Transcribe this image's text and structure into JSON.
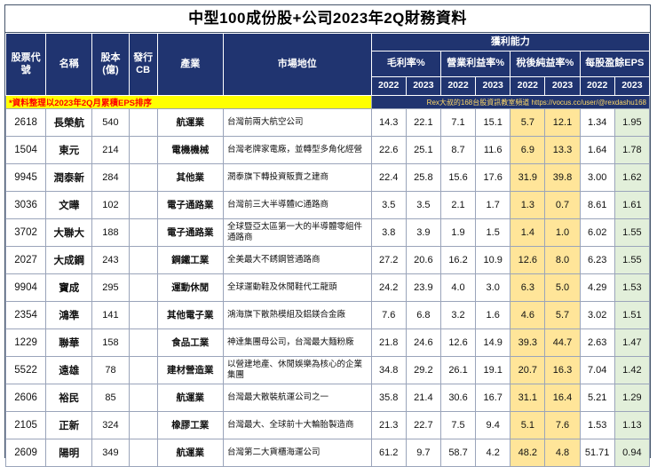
{
  "title": "中型100成份股+公司2023年2Q財務資料",
  "note": {
    "left": "*資料整理以2023年2Q月累積EPS排序",
    "right": "Rex大叔的168台股資訊教室頻道 https://vocus.cc/user/@rexdashu168"
  },
  "header": {
    "code": "股票代號",
    "name": "名稱",
    "capital": "股本(億)",
    "cb": "發行CB",
    "industry": "產業",
    "market": "市場地位",
    "profitability": "獲利能力",
    "gross_margin": "毛利率%",
    "operating_margin": "營業利益率%",
    "net_margin": "稅後純益率%",
    "eps": "每股盈餘EPS",
    "year_2022": "2022",
    "year_2023": "2023"
  },
  "colors": {
    "header_bg": "#203470",
    "note_bg": "#FFFF00",
    "note_text": "#FF0000",
    "net_margin_highlight": "#FFE599",
    "eps_highlight": "#E2EFDA"
  },
  "rows": [
    [
      "2618",
      "長榮航",
      "540",
      "",
      "航運業",
      "台灣前兩大航空公司",
      "14.3",
      "22.1",
      "7.1",
      "15.1",
      "5.7",
      "12.1",
      "1.34",
      "1.95"
    ],
    [
      "1504",
      "東元",
      "214",
      "",
      "電機機械",
      "台灣老牌家電廠，並轉型多角化經營",
      "22.6",
      "25.1",
      "8.7",
      "11.6",
      "6.9",
      "13.3",
      "1.64",
      "1.78"
    ],
    [
      "9945",
      "潤泰新",
      "284",
      "",
      "其他業",
      "潤泰旗下轉投資販賣之建商",
      "22.4",
      "25.8",
      "15.6",
      "17.6",
      "31.9",
      "39.8",
      "3.00",
      "1.62"
    ],
    [
      "3036",
      "文曄",
      "102",
      "",
      "電子通路業",
      "台灣前三大半導體IC通路商",
      "3.5",
      "3.5",
      "2.1",
      "1.7",
      "1.3",
      "0.7",
      "8.61",
      "1.61"
    ],
    [
      "3702",
      "大聯大",
      "188",
      "",
      "電子通路業",
      "全球暨亞太區第一大的半導體零組件通路商",
      "3.8",
      "3.9",
      "1.9",
      "1.5",
      "1.4",
      "1.0",
      "6.02",
      "1.55"
    ],
    [
      "2027",
      "大成鋼",
      "243",
      "",
      "鋼鐵工業",
      "全美最大不銹鋼管通路商",
      "27.2",
      "20.6",
      "16.2",
      "10.9",
      "12.6",
      "8.0",
      "6.23",
      "1.55"
    ],
    [
      "9904",
      "寶成",
      "295",
      "",
      "運動休閒",
      "全球運動鞋及休閒鞋代工龍頭",
      "24.2",
      "23.9",
      "4.0",
      "3.0",
      "6.3",
      "5.0",
      "4.29",
      "1.53"
    ],
    [
      "2354",
      "鴻準",
      "141",
      "",
      "其他電子業",
      "鴻海旗下散熱模組及鋁鎂合金廠",
      "7.6",
      "6.8",
      "3.2",
      "1.6",
      "4.6",
      "5.7",
      "3.02",
      "1.51"
    ],
    [
      "1229",
      "聯華",
      "158",
      "",
      "食品工業",
      "神達集團母公司，台灣最大麵粉廠",
      "21.8",
      "24.6",
      "12.6",
      "14.9",
      "39.3",
      "44.7",
      "2.63",
      "1.47"
    ],
    [
      "5522",
      "遠雄",
      "78",
      "",
      "建材營造業",
      "以營建地產、休閒娛樂為核心的企業集團",
      "34.8",
      "29.2",
      "26.1",
      "19.1",
      "20.7",
      "16.3",
      "7.04",
      "1.42"
    ],
    [
      "2606",
      "裕民",
      "85",
      "",
      "航運業",
      "台灣最大散裝航運公司之一",
      "35.8",
      "21.4",
      "30.6",
      "16.7",
      "31.1",
      "16.4",
      "5.21",
      "1.29"
    ],
    [
      "2105",
      "正新",
      "324",
      "",
      "橡膠工業",
      "台灣最大、全球前十大輪胎製造商",
      "21.3",
      "22.7",
      "7.5",
      "9.4",
      "5.1",
      "7.6",
      "1.53",
      "1.13"
    ],
    [
      "2609",
      "陽明",
      "349",
      "",
      "航運業",
      "台灣第二大貨櫃海運公司",
      "61.2",
      "9.7",
      "58.7",
      "4.2",
      "48.2",
      "4.8",
      "51.71",
      "0.94"
    ]
  ]
}
